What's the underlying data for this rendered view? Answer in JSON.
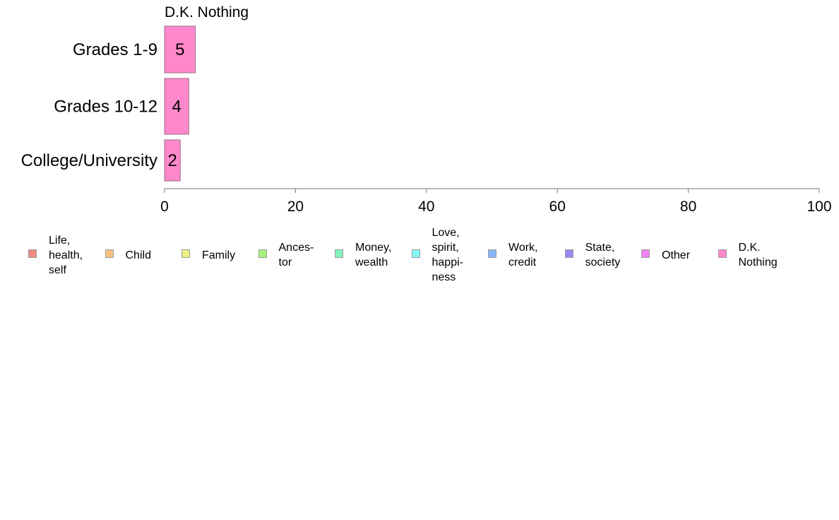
{
  "chart_data": {
    "type": "bar",
    "panel_title": "D.K. Nothing",
    "categories": [
      "Grades 1-9",
      "Grades 10-12",
      "College/University"
    ],
    "series": [
      {
        "name": "D.K.\nNothing",
        "values": [
          4.7,
          3.7,
          2.4
        ],
        "labels": [
          "5",
          "4",
          "2"
        ],
        "color": "#ff88cc"
      }
    ],
    "xlim": [
      0,
      100
    ],
    "xticks": [
      "0",
      "20",
      "40",
      "60",
      "80",
      "100"
    ],
    "orientation": "horizontal",
    "grid": false,
    "legend_position": "bottom",
    "legend": [
      {
        "label": "Life,\nhealth,\nself",
        "color": "#f08a82"
      },
      {
        "label": "Child",
        "color": "#f9c282"
      },
      {
        "label": "Family",
        "color": "#eef182"
      },
      {
        "label": "Ances-\ntor",
        "color": "#a7f17e"
      },
      {
        "label": "Money,\nwealth",
        "color": "#82f1b9"
      },
      {
        "label": "Love,\nspirit,\nhappi-\nness",
        "color": "#82f8f8"
      },
      {
        "label": "Work,\ncredit",
        "color": "#85b5f8"
      },
      {
        "label": "State,\nsociety",
        "color": "#9a89f4"
      },
      {
        "label": "Other",
        "color": "#ef82f5"
      },
      {
        "label": "D.K.\nNothing",
        "color": "#ff88cc"
      }
    ]
  }
}
